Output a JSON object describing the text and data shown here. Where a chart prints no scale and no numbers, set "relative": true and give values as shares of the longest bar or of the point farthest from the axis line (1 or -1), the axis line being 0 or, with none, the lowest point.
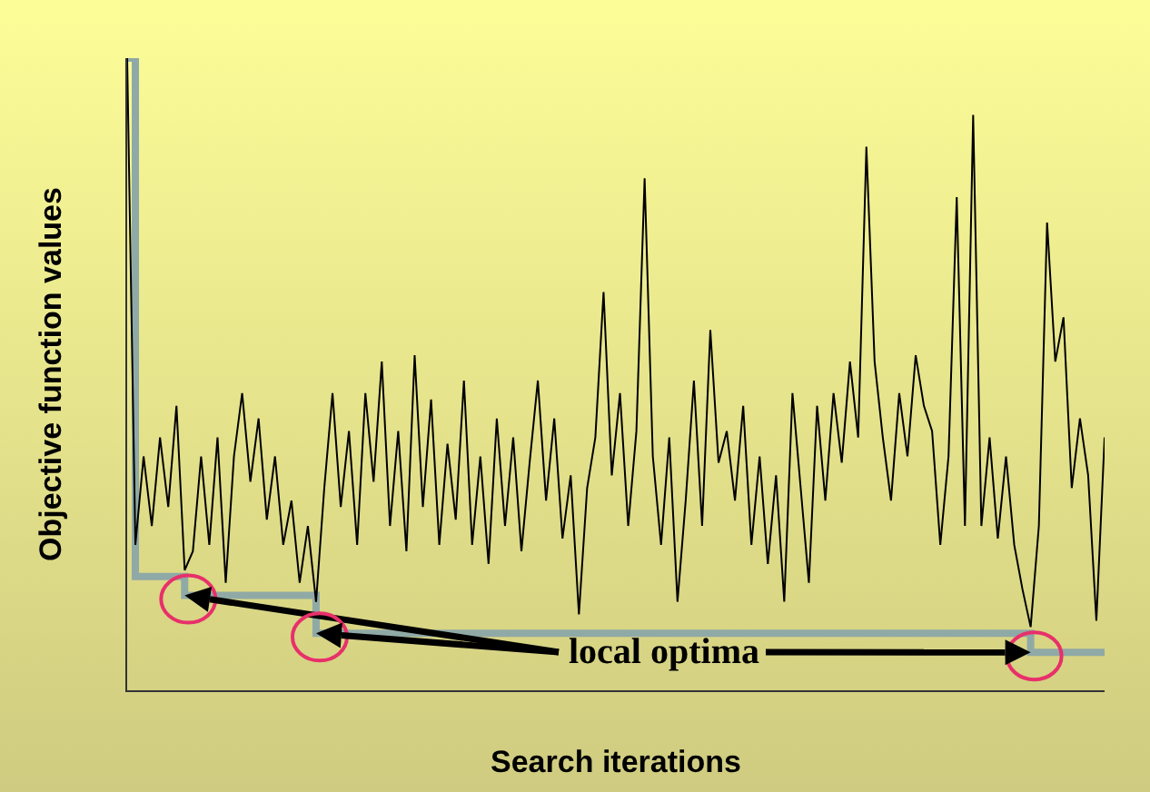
{
  "chart_data": {
    "type": "line",
    "relative": true,
    "xlabel": "Search iterations",
    "ylabel": "Objective function values",
    "annotations": [
      "local optima"
    ],
    "categories": [
      null,
      null,
      null,
      null,
      null,
      null,
      null,
      null,
      null,
      null,
      null,
      null,
      null,
      null,
      null,
      null,
      null,
      null,
      null,
      null,
      null,
      null,
      null,
      null,
      null,
      null,
      null,
      null,
      null,
      null,
      null,
      null,
      null,
      null,
      null,
      null,
      null,
      null,
      null,
      null,
      null,
      null,
      null,
      null,
      null,
      null,
      null,
      null,
      null,
      null,
      null,
      null,
      null,
      null,
      null,
      null,
      null,
      null,
      null,
      null,
      null,
      null,
      null,
      null,
      null,
      null,
      null,
      null,
      null,
      null,
      null,
      null,
      null,
      null,
      null,
      null,
      null,
      null,
      null,
      null,
      null,
      null,
      null,
      null,
      null,
      null,
      null,
      null,
      null,
      null,
      null,
      null,
      null,
      null,
      null,
      null,
      null,
      null,
      null,
      null,
      null,
      null,
      null,
      null,
      null,
      null,
      null,
      null,
      null,
      null,
      null,
      null,
      null,
      null,
      null,
      null,
      null,
      null,
      null,
      null
    ],
    "series": [
      {
        "color": "#000000",
        "values": [
          1.0,
          0.23,
          0.37,
          0.26,
          0.4,
          0.29,
          0.45,
          0.19,
          0.22,
          0.37,
          0.23,
          0.4,
          0.17,
          0.37,
          0.47,
          0.33,
          0.43,
          0.27,
          0.37,
          0.23,
          0.3,
          0.17,
          0.26,
          0.14,
          0.32,
          0.47,
          0.29,
          0.41,
          0.23,
          0.47,
          0.33,
          0.52,
          0.26,
          0.41,
          0.22,
          0.53,
          0.29,
          0.46,
          0.23,
          0.39,
          0.27,
          0.49,
          0.23,
          0.37,
          0.2,
          0.43,
          0.26,
          0.4,
          0.22,
          0.36,
          0.49,
          0.3,
          0.43,
          0.24,
          0.34,
          0.12,
          0.32,
          0.4,
          0.63,
          0.34,
          0.47,
          0.26,
          0.41,
          0.81,
          0.37,
          0.23,
          0.4,
          0.14,
          0.3,
          0.49,
          0.26,
          0.57,
          0.36,
          0.41,
          0.3,
          0.45,
          0.23,
          0.37,
          0.2,
          0.34,
          0.14,
          0.47,
          0.32,
          0.17,
          0.45,
          0.3,
          0.47,
          0.36,
          0.52,
          0.4,
          0.86,
          0.52,
          0.4,
          0.3,
          0.47,
          0.37,
          0.53,
          0.45,
          0.41,
          0.23,
          0.37,
          0.78,
          0.26,
          0.91,
          0.26,
          0.4,
          0.24,
          0.37,
          0.23,
          0.16,
          0.1,
          0.26,
          0.74,
          0.52,
          0.59,
          0.32,
          0.43,
          0.34,
          0.11,
          0.4
        ]
      },
      {
        "type": "step",
        "color": "#8fa9a6",
        "values": [
          1.0,
          0.18,
          0.18,
          0.18,
          0.18,
          0.18,
          0.18,
          0.15,
          0.15,
          0.15,
          0.15,
          0.15,
          0.15,
          0.15,
          0.15,
          0.15,
          0.15,
          0.15,
          0.15,
          0.15,
          0.15,
          0.15,
          0.15,
          0.09,
          0.09,
          0.09,
          0.09,
          0.09,
          0.09,
          0.09,
          0.09,
          0.09,
          0.09,
          0.09,
          0.09,
          0.09,
          0.09,
          0.09,
          0.09,
          0.09,
          0.09,
          0.09,
          0.09,
          0.09,
          0.09,
          0.09,
          0.09,
          0.09,
          0.09,
          0.09,
          0.09,
          0.09,
          0.09,
          0.09,
          0.09,
          0.09,
          0.09,
          0.09,
          0.09,
          0.09,
          0.09,
          0.09,
          0.09,
          0.09,
          0.09,
          0.09,
          0.09,
          0.09,
          0.09,
          0.09,
          0.09,
          0.09,
          0.09,
          0.09,
          0.09,
          0.09,
          0.09,
          0.09,
          0.09,
          0.09,
          0.09,
          0.09,
          0.09,
          0.09,
          0.09,
          0.09,
          0.09,
          0.09,
          0.09,
          0.09,
          0.09,
          0.09,
          0.09,
          0.09,
          0.09,
          0.09,
          0.09,
          0.09,
          0.09,
          0.09,
          0.09,
          0.09,
          0.09,
          0.09,
          0.09,
          0.09,
          0.09,
          0.09,
          0.09,
          0.09,
          0.06,
          0.06,
          0.06,
          0.06,
          0.06,
          0.06,
          0.06,
          0.06,
          0.06,
          0.06
        ]
      }
    ]
  }
}
